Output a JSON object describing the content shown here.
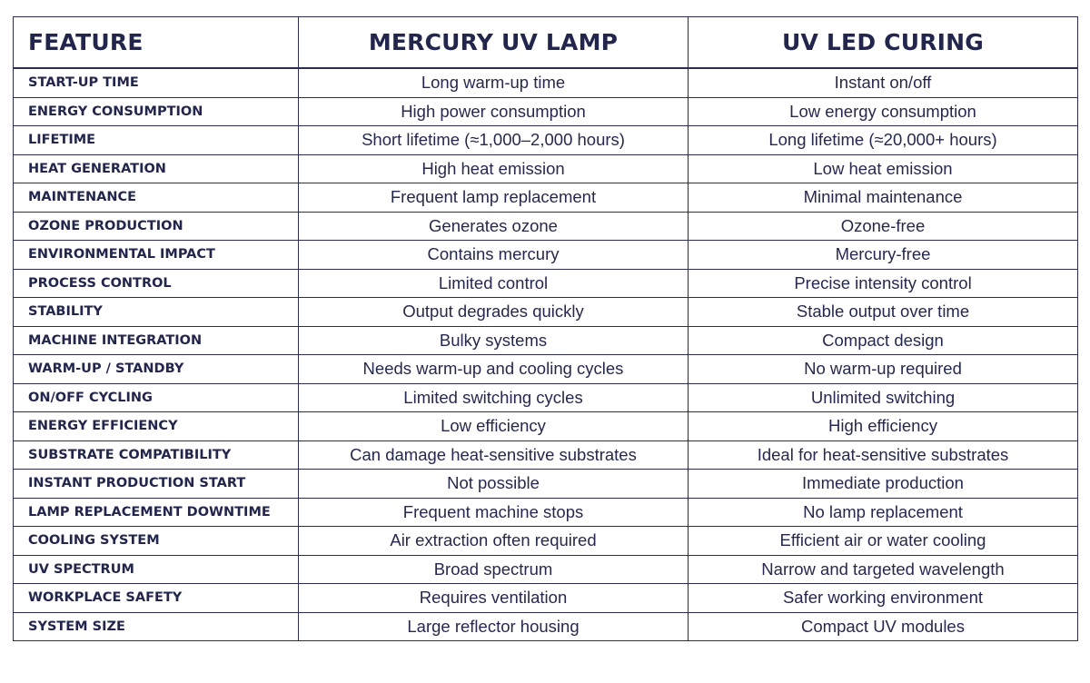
{
  "table": {
    "headers": [
      "FEATURE",
      "MERCURY UV LAMP",
      "UV LED CURING"
    ],
    "rows": [
      {
        "feature": "START-UP TIME",
        "mercury": "Long warm-up time",
        "led": "Instant on/off"
      },
      {
        "feature": "ENERGY CONSUMPTION",
        "mercury": "High power consumption",
        "led": "Low energy consumption"
      },
      {
        "feature": "LIFETIME",
        "mercury": "Short lifetime (≈1,000–2,000 hours)",
        "led": "Long lifetime (≈20,000+ hours)"
      },
      {
        "feature": "HEAT GENERATION",
        "mercury": "High heat emission",
        "led": "Low heat emission"
      },
      {
        "feature": "MAINTENANCE",
        "mercury": "Frequent lamp replacement",
        "led": "Minimal maintenance"
      },
      {
        "feature": "OZONE PRODUCTION",
        "mercury": "Generates ozone",
        "led": "Ozone-free"
      },
      {
        "feature": "ENVIRONMENTAL IMPACT",
        "mercury": "Contains mercury",
        "led": "Mercury-free"
      },
      {
        "feature": "PROCESS CONTROL",
        "mercury": "Limited control",
        "led": "Precise intensity control"
      },
      {
        "feature": "STABILITY",
        "mercury": "Output degrades quickly",
        "led": "Stable output over time"
      },
      {
        "feature": "MACHINE INTEGRATION",
        "mercury": "Bulky systems",
        "led": "Compact design"
      },
      {
        "feature": "WARM-UP / STANDBY",
        "mercury": "Needs warm-up and cooling cycles",
        "led": "No warm-up required"
      },
      {
        "feature": "ON/OFF CYCLING",
        "mercury": "Limited switching cycles",
        "led": "Unlimited switching"
      },
      {
        "feature": "ENERGY EFFICIENCY",
        "mercury": "Low efficiency",
        "led": "High efficiency"
      },
      {
        "feature": "SUBSTRATE COMPATIBILITY",
        "mercury": "Can damage heat-sensitive substrates",
        "led": "Ideal for heat-sensitive substrates"
      },
      {
        "feature": "INSTANT PRODUCTION START",
        "mercury": "Not possible",
        "led": "Immediate production"
      },
      {
        "feature": "LAMP REPLACEMENT DOWNTIME",
        "mercury": "Frequent machine stops",
        "led": "No lamp replacement"
      },
      {
        "feature": "COOLING SYSTEM",
        "mercury": "Air extraction often required",
        "led": "Efficient air or water cooling"
      },
      {
        "feature": "UV SPECTRUM",
        "mercury": "Broad spectrum",
        "led": "Narrow and targeted wavelength"
      },
      {
        "feature": "WORKPLACE SAFETY",
        "mercury": "Requires ventilation",
        "led": "Safer working environment"
      },
      {
        "feature": "SYSTEM SIZE",
        "mercury": "Large reflector housing",
        "led": "Compact UV modules"
      }
    ]
  },
  "colors": {
    "border": "#2b2d52",
    "text": "#23264c",
    "background": "#ffffff"
  }
}
